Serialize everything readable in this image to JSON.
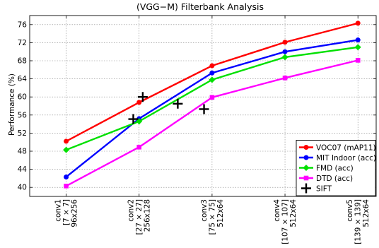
{
  "chart_data": {
    "type": "line",
    "title": "(VGG−M) Filterbank Analysis",
    "xlabel": "",
    "ylabel": "Performance (%)",
    "ylim": [
      38,
      78
    ],
    "yticks": [
      40,
      44,
      48,
      52,
      56,
      60,
      64,
      68,
      72,
      76
    ],
    "grid": true,
    "legend_position": "bottom-right",
    "categories": [
      [
        "conv1",
        "[7 ×  7]",
        "96x256"
      ],
      [
        "conv2",
        "[27 ×  27]",
        "256x128"
      ],
      [
        "conv3",
        "[75 ×  75]",
        "512x64"
      ],
      [
        "conv4",
        "[107 ×  107]",
        "512x64"
      ],
      [
        "conv5",
        "[139 ×  139]",
        "512x64"
      ]
    ],
    "x": [
      1,
      2,
      3,
      4,
      5
    ],
    "series": [
      {
        "name": "VOC07 (mAP11)",
        "color": "#ff0000",
        "marker": "circle",
        "values": [
          50.2,
          58.8,
          66.9,
          72.1,
          76.3
        ]
      },
      {
        "name": "MIT Indoor (acc)",
        "color": "#0000ff",
        "marker": "circle",
        "values": [
          42.3,
          55.2,
          65.3,
          70.0,
          72.6
        ]
      },
      {
        "name": "FMD (acc)",
        "color": "#00e000",
        "marker": "diamond",
        "values": [
          48.3,
          54.6,
          63.8,
          68.8,
          71.0
        ]
      },
      {
        "name": "DTD (acc)",
        "color": "#ff00ff",
        "marker": "square",
        "values": [
          40.3,
          48.9,
          59.9,
          64.2,
          68.1
        ]
      }
    ],
    "sift": {
      "name": "SIFT",
      "color": "#000000",
      "marker": "plus",
      "x": [
        1.92,
        2.05,
        2.53,
        2.89
      ],
      "y": [
        55.1,
        60.0,
        58.5,
        57.3
      ]
    }
  }
}
